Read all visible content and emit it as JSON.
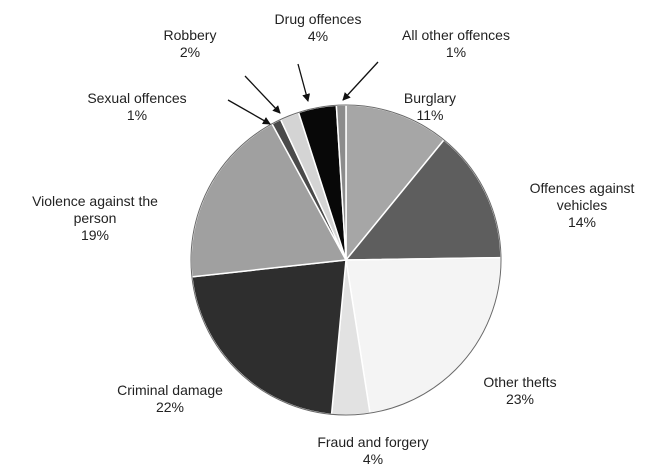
{
  "chart_data": {
    "type": "pie",
    "title": "",
    "start": "top, clockwise",
    "slices": [
      {
        "label": "Burglary",
        "value": 11,
        "value_label": "11%",
        "color": "#a6a6a6"
      },
      {
        "label": "Offences against vehicles",
        "value": 14,
        "value_label": "14%",
        "color": "#5e5e5e"
      },
      {
        "label": "Other thefts",
        "value": 23,
        "value_label": "23%",
        "color": "#f4f4f4"
      },
      {
        "label": "Fraud and forgery",
        "value": 4,
        "value_label": "4%",
        "color": "#e2e2e2"
      },
      {
        "label": "Criminal damage",
        "value": 22,
        "value_label": "22%",
        "color": "#2e2e2e"
      },
      {
        "label": "Violence against the person",
        "value": 19,
        "value_label": "19%",
        "color": "#a0a0a0"
      },
      {
        "label": "Sexual offences",
        "value": 1,
        "value_label": "1%",
        "color": "#4a4a4a"
      },
      {
        "label": "Robbery",
        "value": 2,
        "value_label": "2%",
        "color": "#d4d4d4"
      },
      {
        "label": "Drug offences",
        "value": 4,
        "value_label": "4%",
        "color": "#080808"
      },
      {
        "label": "All other offences",
        "value": 1,
        "value_label": "1%",
        "color": "#8c8c8c"
      }
    ]
  }
}
